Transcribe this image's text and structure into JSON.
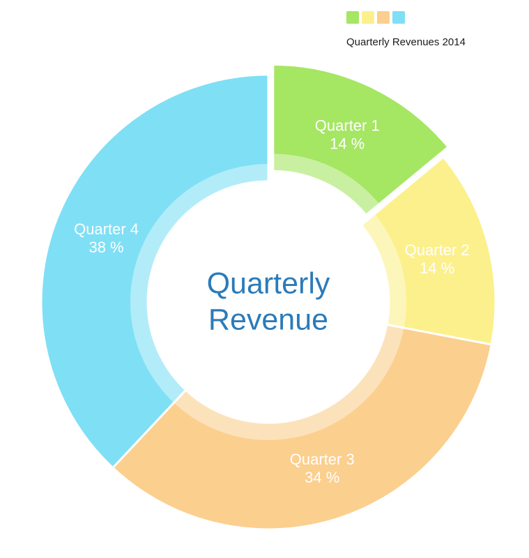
{
  "page": {
    "background": "#ffffff"
  },
  "legend": {
    "title": "Quarterly Revenues 2014"
  },
  "center": {
    "line1": "Quarterly",
    "line2": "Revenue"
  },
  "chart_data": {
    "type": "pie",
    "subtype": "donut",
    "title": "Quarterly Revenue",
    "legend_title": "Quarterly Revenues 2014",
    "direction": "clockwise",
    "start_angle_deg": 0,
    "label_color": "#ffffff",
    "center_label_color": "#2b7bb9",
    "center_label_lines": [
      "Quarterly",
      "Revenue"
    ],
    "slices": [
      {
        "label": "Quarter 1",
        "value": 14,
        "display": "14 %",
        "color": "#a5e663",
        "exploded": true
      },
      {
        "label": "Quarter 2",
        "value": 14,
        "display": "14 %",
        "color": "#fcf08c",
        "exploded": false
      },
      {
        "label": "Quarter 3",
        "value": 34,
        "display": "34 %",
        "color": "#fbcf8e",
        "exploded": false
      },
      {
        "label": "Quarter 4",
        "value": 38,
        "display": "38 %",
        "color": "#7fdff5",
        "exploded": false
      }
    ]
  }
}
